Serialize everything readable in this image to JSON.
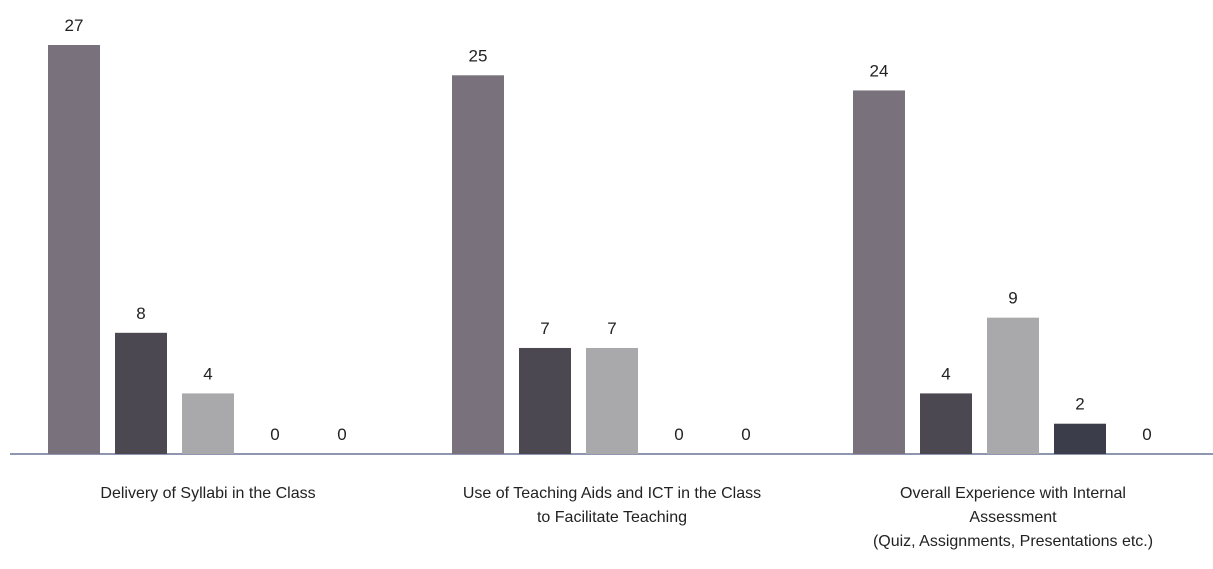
{
  "chart_data": {
    "type": "bar",
    "categories": [
      "Delivery of Syllabi in the Class",
      "Use of Teaching Aids and ICT in the Class\nto Facilitate Teaching",
      "Overall Experience with Internal\nAssessment\n(Quiz, Assignments, Presentations etc.)"
    ],
    "series": [
      {
        "color": "#79727c",
        "values": [
          27,
          25,
          24
        ]
      },
      {
        "color": "#4b4852",
        "values": [
          8,
          7,
          4
        ]
      },
      {
        "color": "#a9a9ab",
        "values": [
          4,
          7,
          9
        ]
      },
      {
        "color": "#3b3e4a",
        "values": [
          0,
          0,
          2
        ]
      },
      {
        "color": "#8a8a8e",
        "values": [
          0,
          0,
          0
        ]
      }
    ],
    "ylim": [
      0,
      27
    ]
  }
}
